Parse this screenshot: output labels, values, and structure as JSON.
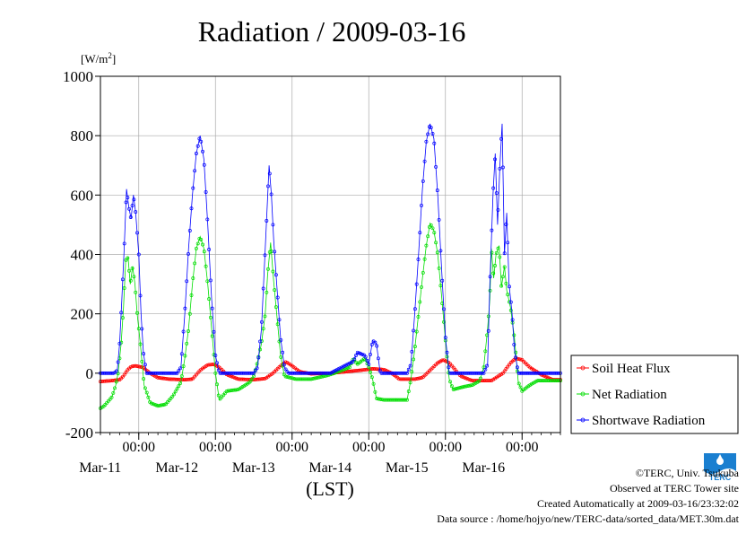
{
  "chart_data": {
    "type": "line",
    "title": "Radiation / 2009-03-16",
    "ylabel": "[W/m2]",
    "ylabel_main": "[W/m",
    "ylabel_sup": "2",
    "ylabel_close": "]",
    "xlabel": "(LST)",
    "ylim": [
      -200,
      1000
    ],
    "yticks": [
      -200,
      0,
      200,
      400,
      600,
      800,
      1000
    ],
    "xlim": [
      0,
      6
    ],
    "x_unit": "days since Mar-10 12:00 LST",
    "xticks": [
      {
        "x": 0.5,
        "time": "00:00",
        "date": "Mar-11"
      },
      {
        "x": 1.5,
        "time": "00:00",
        "date": "Mar-12"
      },
      {
        "x": 2.5,
        "time": "00:00",
        "date": "Mar-13"
      },
      {
        "x": 3.5,
        "time": "00:00",
        "date": "Mar-14"
      },
      {
        "x": 4.5,
        "time": "00:00",
        "date": "Mar-15"
      },
      {
        "x": 5.5,
        "time": "00:00",
        "date": "Mar-16"
      }
    ],
    "grid": true,
    "legend_position": "bottom-right-outside",
    "series": [
      {
        "name": "Soil Heat Flux",
        "color": "#ff0000",
        "points": [
          [
            0.0,
            -28
          ],
          [
            0.15,
            -25
          ],
          [
            0.25,
            -22
          ],
          [
            0.3,
            -10
          ],
          [
            0.35,
            10
          ],
          [
            0.4,
            22
          ],
          [
            0.45,
            25
          ],
          [
            0.55,
            20
          ],
          [
            0.65,
            0
          ],
          [
            0.75,
            -15
          ],
          [
            0.9,
            -20
          ],
          [
            1.1,
            -22
          ],
          [
            1.2,
            -20
          ],
          [
            1.3,
            10
          ],
          [
            1.4,
            28
          ],
          [
            1.48,
            30
          ],
          [
            1.55,
            20
          ],
          [
            1.65,
            -5
          ],
          [
            1.8,
            -20
          ],
          [
            2.0,
            -22
          ],
          [
            2.15,
            -18
          ],
          [
            2.25,
            0
          ],
          [
            2.35,
            25
          ],
          [
            2.42,
            38
          ],
          [
            2.5,
            25
          ],
          [
            2.6,
            5
          ],
          [
            2.75,
            -2
          ],
          [
            3.0,
            0
          ],
          [
            3.2,
            5
          ],
          [
            3.4,
            10
          ],
          [
            3.55,
            15
          ],
          [
            3.7,
            12
          ],
          [
            3.8,
            0
          ],
          [
            3.9,
            -20
          ],
          [
            4.1,
            -20
          ],
          [
            4.2,
            -15
          ],
          [
            4.3,
            10
          ],
          [
            4.4,
            35
          ],
          [
            4.47,
            45
          ],
          [
            4.55,
            35
          ],
          [
            4.7,
            -10
          ],
          [
            4.85,
            -25
          ],
          [
            5.1,
            -25
          ],
          [
            5.25,
            0
          ],
          [
            5.35,
            35
          ],
          [
            5.42,
            50
          ],
          [
            5.5,
            45
          ],
          [
            5.6,
            20
          ],
          [
            5.75,
            -5
          ],
          [
            5.9,
            -22
          ],
          [
            6.0,
            -22
          ]
        ]
      },
      {
        "name": "Net Radiation",
        "color": "#00dd00",
        "points": [
          [
            0.0,
            -118
          ],
          [
            0.05,
            -110
          ],
          [
            0.1,
            -95
          ],
          [
            0.15,
            -80
          ],
          [
            0.2,
            -40
          ],
          [
            0.23,
            0
          ],
          [
            0.27,
            100
          ],
          [
            0.3,
            220
          ],
          [
            0.33,
            380
          ],
          [
            0.36,
            390
          ],
          [
            0.39,
            300
          ],
          [
            0.42,
            360
          ],
          [
            0.45,
            300
          ],
          [
            0.48,
            200
          ],
          [
            0.52,
            100
          ],
          [
            0.57,
            -40
          ],
          [
            0.65,
            -100
          ],
          [
            0.75,
            -110
          ],
          [
            0.85,
            -105
          ],
          [
            0.95,
            -75
          ],
          [
            1.05,
            -30
          ],
          [
            1.1,
            50
          ],
          [
            1.15,
            150
          ],
          [
            1.2,
            300
          ],
          [
            1.25,
            420
          ],
          [
            1.3,
            460
          ],
          [
            1.35,
            420
          ],
          [
            1.4,
            300
          ],
          [
            1.45,
            150
          ],
          [
            1.5,
            0
          ],
          [
            1.55,
            -90
          ],
          [
            1.65,
            -60
          ],
          [
            1.8,
            -55
          ],
          [
            1.95,
            -30
          ],
          [
            2.0,
            -10
          ],
          [
            2.05,
            40
          ],
          [
            2.1,
            100
          ],
          [
            2.15,
            200
          ],
          [
            2.18,
            330
          ],
          [
            2.22,
            440
          ],
          [
            2.26,
            310
          ],
          [
            2.3,
            200
          ],
          [
            2.35,
            60
          ],
          [
            2.4,
            -10
          ],
          [
            2.55,
            -20
          ],
          [
            2.75,
            -20
          ],
          [
            2.95,
            -8
          ],
          [
            3.05,
            0
          ],
          [
            3.15,
            10
          ],
          [
            3.25,
            20
          ],
          [
            3.3,
            50
          ],
          [
            3.35,
            30
          ],
          [
            3.45,
            50
          ],
          [
            3.5,
            20
          ],
          [
            3.55,
            -20
          ],
          [
            3.6,
            -85
          ],
          [
            3.7,
            -90
          ],
          [
            3.85,
            -90
          ],
          [
            4.0,
            -90
          ],
          [
            4.05,
            -20
          ],
          [
            4.1,
            80
          ],
          [
            4.15,
            200
          ],
          [
            4.2,
            320
          ],
          [
            4.25,
            430
          ],
          [
            4.3,
            505
          ],
          [
            4.35,
            480
          ],
          [
            4.4,
            400
          ],
          [
            4.45,
            260
          ],
          [
            4.5,
            110
          ],
          [
            4.55,
            -20
          ],
          [
            4.6,
            -55
          ],
          [
            4.75,
            -45
          ],
          [
            4.85,
            -40
          ],
          [
            4.95,
            -25
          ],
          [
            5.0,
            20
          ],
          [
            5.05,
            150
          ],
          [
            5.08,
            250
          ],
          [
            5.1,
            420
          ],
          [
            5.13,
            320
          ],
          [
            5.16,
            400
          ],
          [
            5.2,
            430
          ],
          [
            5.23,
            290
          ],
          [
            5.27,
            360
          ],
          [
            5.3,
            280
          ],
          [
            5.35,
            220
          ],
          [
            5.4,
            120
          ],
          [
            5.45,
            -30
          ],
          [
            5.5,
            -60
          ],
          [
            5.6,
            -40
          ],
          [
            5.7,
            -25
          ],
          [
            6.0,
            -25
          ]
        ]
      },
      {
        "name": "Shortwave Radiation",
        "color": "#0000ff",
        "points": [
          [
            0.0,
            0
          ],
          [
            0.18,
            0
          ],
          [
            0.22,
            10
          ],
          [
            0.25,
            100
          ],
          [
            0.28,
            250
          ],
          [
            0.31,
            420
          ],
          [
            0.34,
            620
          ],
          [
            0.37,
            560
          ],
          [
            0.4,
            520
          ],
          [
            0.43,
            600
          ],
          [
            0.46,
            540
          ],
          [
            0.5,
            400
          ],
          [
            0.53,
            200
          ],
          [
            0.56,
            70
          ],
          [
            0.6,
            0
          ],
          [
            1.0,
            0
          ],
          [
            1.05,
            20
          ],
          [
            1.1,
            200
          ],
          [
            1.15,
            420
          ],
          [
            1.2,
            600
          ],
          [
            1.25,
            740
          ],
          [
            1.3,
            800
          ],
          [
            1.35,
            720
          ],
          [
            1.4,
            500
          ],
          [
            1.45,
            250
          ],
          [
            1.5,
            60
          ],
          [
            1.55,
            0
          ],
          [
            2.0,
            0
          ],
          [
            2.05,
            20
          ],
          [
            2.1,
            150
          ],
          [
            2.15,
            420
          ],
          [
            2.2,
            700
          ],
          [
            2.23,
            600
          ],
          [
            2.26,
            450
          ],
          [
            2.3,
            300
          ],
          [
            2.35,
            120
          ],
          [
            2.4,
            20
          ],
          [
            2.45,
            0
          ],
          [
            3.0,
            0
          ],
          [
            3.3,
            40
          ],
          [
            3.35,
            70
          ],
          [
            3.45,
            60
          ],
          [
            3.5,
            30
          ],
          [
            3.55,
            110
          ],
          [
            3.6,
            100
          ],
          [
            3.65,
            0
          ],
          [
            4.0,
            0
          ],
          [
            4.05,
            30
          ],
          [
            4.1,
            200
          ],
          [
            4.15,
            400
          ],
          [
            4.2,
            620
          ],
          [
            4.25,
            780
          ],
          [
            4.3,
            840
          ],
          [
            4.35,
            790
          ],
          [
            4.4,
            600
          ],
          [
            4.45,
            350
          ],
          [
            4.5,
            120
          ],
          [
            4.55,
            0
          ],
          [
            5.0,
            0
          ],
          [
            5.05,
            30
          ],
          [
            5.08,
            300
          ],
          [
            5.12,
            600
          ],
          [
            5.15,
            740
          ],
          [
            5.18,
            500
          ],
          [
            5.21,
            700
          ],
          [
            5.24,
            840
          ],
          [
            5.27,
            400
          ],
          [
            5.3,
            540
          ],
          [
            5.33,
            300
          ],
          [
            5.37,
            200
          ],
          [
            5.4,
            80
          ],
          [
            5.45,
            0
          ],
          [
            6.0,
            0
          ]
        ]
      }
    ]
  },
  "footer": {
    "copyright": "©TERC, Univ. Tsukuba",
    "observed": "Observed at TERC Tower site",
    "created": "Created Automatically at 2009-03-16/23:32:02",
    "source": "Data source : /home/hojyo/new/TERC-data/sorted_data/MET.30m.dat"
  },
  "logo": {
    "text": "TERC",
    "color": "#1a7fd0"
  }
}
